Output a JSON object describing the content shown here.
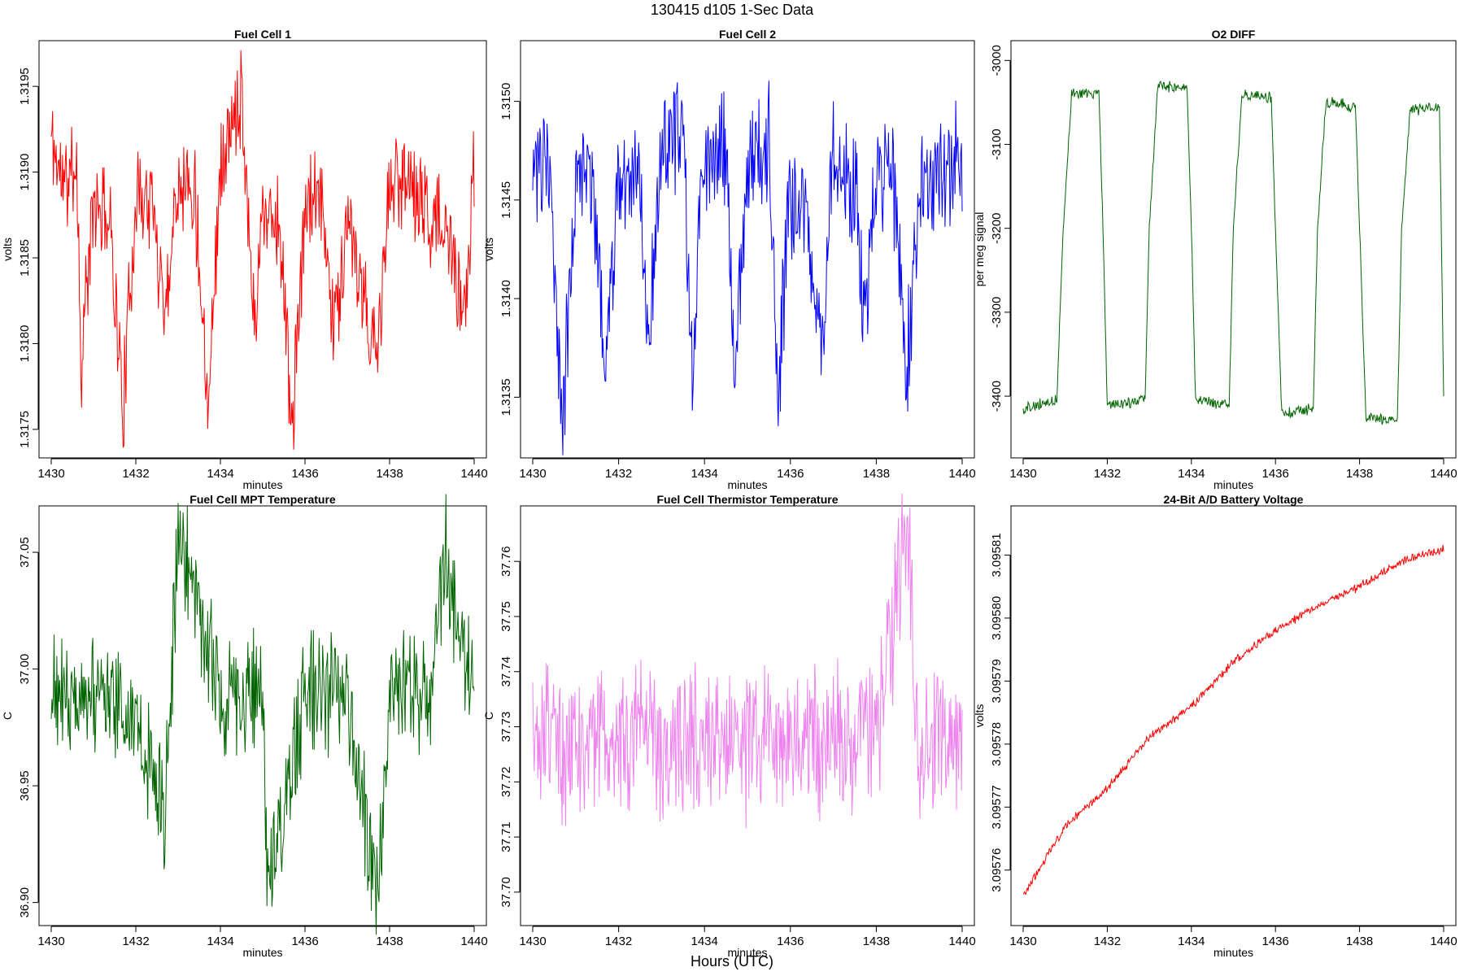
{
  "figure": {
    "title": "130415   d105   1-Sec Data",
    "footer_label": "Hours (UTC)"
  },
  "chart_data": [
    {
      "type": "line",
      "title": "Fuel Cell 1",
      "xlabel": "minutes",
      "ylabel": "volts",
      "xlim": [
        1430,
        1440
      ],
      "ylim": [
        1.3174,
        1.3197
      ],
      "x_ticks": [
        1430,
        1432,
        1434,
        1436,
        1438,
        1440
      ],
      "y_ticks": [
        1.3175,
        1.318,
        1.3185,
        1.319,
        1.3195
      ],
      "y_tick_labels": [
        "1.3175",
        "1.3180",
        "1.3185",
        "1.3190",
        "1.3195"
      ],
      "grid": false,
      "series": [
        {
          "color": "#ff0000",
          "x": [
            1430,
            1430.3,
            1430.6,
            1430.7,
            1431,
            1431.4,
            1431.7,
            1432,
            1432.4,
            1432.7,
            1433,
            1433.4,
            1433.7,
            1434,
            1434.5,
            1434.8,
            1435,
            1435.4,
            1435.7,
            1436,
            1436.4,
            1436.7,
            1437,
            1437.3,
            1437.7,
            1438,
            1438.4,
            1438.8,
            1439.2,
            1439.5,
            1439.75,
            1440
          ],
          "y": [
            1.3192,
            1.3189,
            1.3191,
            1.3179,
            1.3188,
            1.3187,
            1.3176,
            1.3189,
            1.3188,
            1.3182,
            1.319,
            1.3189,
            1.3177,
            1.319,
            1.3195,
            1.3181,
            1.3188,
            1.3187,
            1.3175,
            1.3188,
            1.3188,
            1.3181,
            1.3187,
            1.3183,
            1.3179,
            1.3189,
            1.319,
            1.3188,
            1.3187,
            1.3185,
            1.318,
            1.3191
          ]
        }
      ],
      "color": "#ff0000",
      "noise_amp": 0.00035,
      "seed": 11
    },
    {
      "type": "line",
      "title": "Fuel Cell 2",
      "xlabel": "minutes",
      "ylabel": "volts",
      "xlim": [
        1430,
        1440
      ],
      "ylim": [
        1.31325,
        1.31525
      ],
      "x_ticks": [
        1430,
        1432,
        1434,
        1436,
        1438,
        1440
      ],
      "y_ticks": [
        1.3135,
        1.314,
        1.3145,
        1.315
      ],
      "y_tick_labels": [
        "1.3135",
        "1.3140",
        "1.3145",
        "1.3150"
      ],
      "grid": false,
      "series": [
        {
          "color": "#0000ff",
          "x": [
            1430,
            1430.4,
            1430.7,
            1431,
            1431.4,
            1431.7,
            1432,
            1432.5,
            1432.7,
            1433,
            1433.5,
            1433.7,
            1434,
            1434.5,
            1434.7,
            1435,
            1435.5,
            1435.7,
            1436,
            1436.4,
            1436.7,
            1437,
            1437.5,
            1437.7,
            1438,
            1438.4,
            1438.7,
            1439,
            1439.5,
            1440
          ],
          "y": [
            1.3147,
            1.3146,
            1.31335,
            1.3147,
            1.3146,
            1.3136,
            1.3146,
            1.3147,
            1.3137,
            1.3148,
            1.3148,
            1.3137,
            1.3147,
            1.3148,
            1.3136,
            1.3147,
            1.3148,
            1.3135,
            1.3145,
            1.3145,
            1.3136,
            1.3147,
            1.3146,
            1.3139,
            1.3146,
            1.3146,
            1.3136,
            1.3146,
            1.3146,
            1.3147
          ]
        }
      ],
      "color": "#0000ff",
      "noise_amp": 0.00035,
      "seed": 23
    },
    {
      "type": "line",
      "title": "O2 DIFF",
      "xlabel": "minutes",
      "ylabel": "per meg signal",
      "xlim": [
        1430,
        1440
      ],
      "ylim": [
        -3460,
        -2990
      ],
      "x_ticks": [
        1430,
        1432,
        1434,
        1436,
        1438,
        1440
      ],
      "y_ticks": [
        -3400,
        -3300,
        -3200,
        -3100,
        -3000
      ],
      "y_tick_labels": [
        "-3400",
        "-3300",
        "-3200",
        "-3100",
        "-3000"
      ],
      "grid": false,
      "series": [
        {
          "color": "#006400",
          "x": [
            1430,
            1430.8,
            1430.95,
            1431.15,
            1431.8,
            1431.9,
            1432.0,
            1432.9,
            1433.0,
            1433.2,
            1433.9,
            1434.0,
            1434.1,
            1434.9,
            1435.0,
            1435.2,
            1435.9,
            1436.0,
            1436.15,
            1436.9,
            1437.0,
            1437.2,
            1437.9,
            1438.0,
            1438.15,
            1438.9,
            1439.0,
            1439.2,
            1439.9,
            1440
          ],
          "y": [
            -3415,
            -3405,
            -3200,
            -3040,
            -3040,
            -3200,
            -3410,
            -3405,
            -3200,
            -3030,
            -3035,
            -3200,
            -3405,
            -3410,
            -3200,
            -3040,
            -3045,
            -3200,
            -3420,
            -3415,
            -3200,
            -3050,
            -3055,
            -3200,
            -3425,
            -3430,
            -3200,
            -3060,
            -3055,
            -3395
          ]
        }
      ],
      "color": "#006400",
      "noise_amp": 8,
      "seed": 37
    },
    {
      "type": "line",
      "title": "Fuel Cell MPT Temperature",
      "xlabel": "minutes",
      "ylabel": "C",
      "xlim": [
        1430,
        1440
      ],
      "ylim": [
        36.895,
        37.065
      ],
      "x_ticks": [
        1430,
        1432,
        1434,
        1436,
        1438,
        1440
      ],
      "y_ticks": [
        36.9,
        36.95,
        37.0,
        37.05
      ],
      "y_tick_labels": [
        "36.90",
        "36.95",
        "37.00",
        "37.05"
      ],
      "grid": false,
      "series": [
        {
          "color": "#006400",
          "x": [
            1430,
            1431,
            1432,
            1432.7,
            1433,
            1434,
            1435,
            1435.1,
            1436,
            1437,
            1437.7,
            1438,
            1439,
            1439.3,
            1440
          ],
          "y": [
            36.99,
            36.99,
            36.98,
            36.94,
            37.06,
            36.99,
            36.99,
            36.905,
            36.99,
            36.99,
            36.9,
            36.99,
            36.99,
            37.05,
            36.99
          ]
        }
      ],
      "color": "#006400",
      "noise_amp": 0.03,
      "seed": 51
    },
    {
      "type": "line",
      "title": "Fuel Cell Thermistor Temperature",
      "xlabel": "minutes",
      "ylabel": "C",
      "xlim": [
        1430,
        1440
      ],
      "ylim": [
        37.696,
        37.768
      ],
      "x_ticks": [
        1430,
        1432,
        1434,
        1436,
        1438,
        1440
      ],
      "y_ticks": [
        37.7,
        37.71,
        37.72,
        37.73,
        37.74,
        37.75,
        37.76
      ],
      "y_tick_labels": [
        "37.70",
        "37.71",
        "37.72",
        "37.73",
        "37.74",
        "37.75",
        "37.76"
      ],
      "grid": false,
      "series": [
        {
          "color": "#ee82ee",
          "x": [
            1430,
            1431,
            1432,
            1433,
            1434,
            1435,
            1436,
            1437,
            1438,
            1438.7,
            1439,
            1440
          ],
          "y": [
            37.727,
            37.727,
            37.727,
            37.727,
            37.727,
            37.727,
            37.727,
            37.728,
            37.727,
            37.767,
            37.727,
            37.727
          ]
        }
      ],
      "color": "#ee82ee",
      "noise_amp": 0.016,
      "seed": 67
    },
    {
      "type": "line",
      "title": "24-Bit A/D Battery Voltage",
      "xlabel": "minutes",
      "ylabel": "volts",
      "xlim": [
        1430,
        1440
      ],
      "ylim": [
        3.095753,
        3.095816
      ],
      "x_ticks": [
        1430,
        1432,
        1434,
        1436,
        1438,
        1440
      ],
      "y_ticks": [
        3.09576,
        3.09577,
        3.09578,
        3.09579,
        3.0958,
        3.09581
      ],
      "y_tick_labels": [
        "3.09576",
        "3.09577",
        "3.09578",
        "3.09579",
        "3.09580",
        "3.09581"
      ],
      "grid": false,
      "series": [
        {
          "color": "#ff0000",
          "x": [
            1430,
            1431,
            1432,
            1433,
            1434,
            1435,
            1436,
            1437,
            1438,
            1439,
            1440
          ],
          "y": [
            3.095756,
            3.095767,
            3.095773,
            3.095781,
            3.095786,
            3.095793,
            3.095798,
            3.095802,
            3.095805,
            3.095809,
            3.095811
          ]
        }
      ],
      "color": "#ff0000",
      "noise_amp": 8e-07,
      "seed": 83
    }
  ]
}
